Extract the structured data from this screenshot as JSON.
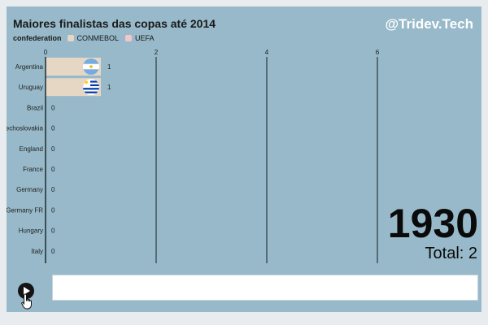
{
  "title": "Maiores finalistas das copas até 2014",
  "brand": "@Tridev.Tech",
  "legend": {
    "title": "confederation",
    "items": [
      {
        "label": "CONMEBOL",
        "color": "#e6d6c4"
      },
      {
        "label": "UEFA",
        "color": "#f2c6cc"
      }
    ]
  },
  "year": "1930",
  "total_text": "Total: 2",
  "colors": {
    "frame": "#97b9c9",
    "bar": "#e6d6c4",
    "axis": "#2b3a40"
  },
  "chart_data": {
    "type": "bar",
    "orientation": "horizontal",
    "title": "Maiores finalistas das copas até 2014",
    "categories": [
      "Argentina",
      "Uruguay",
      "Brazil",
      "Czechoslovakia",
      "England",
      "France",
      "Germany",
      "Germany FR",
      "Hungary",
      "Italy"
    ],
    "values": [
      1,
      1,
      0,
      0,
      0,
      0,
      0,
      0,
      0,
      0
    ],
    "confederation": [
      "CONMEBOL",
      "CONMEBOL",
      "CONMEBOL",
      "UEFA",
      "UEFA",
      "UEFA",
      "UEFA",
      "UEFA",
      "UEFA",
      "UEFA"
    ],
    "value_labels": [
      "1",
      "1",
      "0",
      "0",
      "0",
      "0",
      "0",
      "0",
      "0",
      "0"
    ],
    "xticks": [
      0,
      2,
      4,
      6
    ],
    "xlim": [
      0,
      6
    ],
    "grid": true,
    "legend_position": "top-left",
    "flag_icons": [
      "argentina-flag-icon",
      "uruguay-flag-icon",
      null,
      null,
      null,
      null,
      null,
      null,
      null,
      null
    ]
  }
}
